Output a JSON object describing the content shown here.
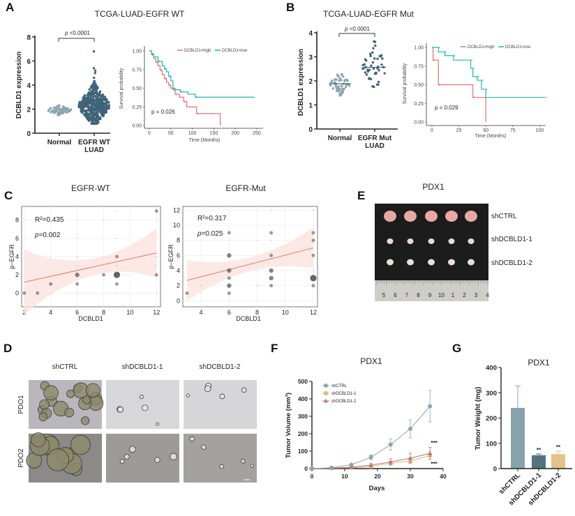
{
  "panel_labels": [
    "A",
    "B",
    "C",
    "D",
    "E",
    "F",
    "G"
  ],
  "colors": {
    "km_high": "#e8716e",
    "km_low": "#21b5b0",
    "normal_dots": "#8fa6ae",
    "tumor_dots": "#3f6478",
    "reg_line": "#e07a62",
    "ci_band": "#fbe3df",
    "bubble": "#555f5a",
    "shCTRL": "#8aa5ad",
    "shDCBLD1_1": "#e0b87c",
    "shDCBLD1_2": "#b87272",
    "bar_shCTRL": "#87a4ab",
    "bar_sh1": "#55727f",
    "bar_sh2": "#e2c287"
  },
  "chart_data": [
    {
      "id": "A-scatter",
      "type": "scatter",
      "panel_title": "TCGA-LUAD-EGFR WT",
      "ylabel": "DCBLD1 expression",
      "ylim": [
        0,
        8
      ],
      "yticks": [
        "0",
        "2",
        "4",
        "6",
        "8"
      ],
      "categories": [
        [
          "Normal"
        ],
        [
          "EGFR WT",
          "LUAD"
        ]
      ],
      "significance": {
        "p_symbol": "p",
        "p_text": " <0.0001"
      },
      "groups": [
        {
          "name": "Normal",
          "center": 1.9,
          "range": [
            1.5,
            2.3
          ]
        },
        {
          "name": "EGFR WT LUAD",
          "center": 2.3,
          "range": [
            0.8,
            4.3
          ],
          "outliers": [
            4.6,
            5.0,
            5.2,
            5.4,
            6.8
          ]
        }
      ]
    },
    {
      "id": "A-km",
      "type": "line",
      "xlabel": "Time (Months)",
      "ylabel": "Survival probability",
      "xlim": [
        0,
        250
      ],
      "ylim": [
        0,
        1
      ],
      "xticks": [
        "0",
        "50",
        "100",
        "150",
        "200",
        "250"
      ],
      "yticks": [
        "0.00",
        "0.25",
        "0.50",
        "0.75",
        "1.00"
      ],
      "p_text": "p = 0.026",
      "series": [
        {
          "name": "DCBLD1=high",
          "points": [
            [
              0,
              1
            ],
            [
              5,
              0.95
            ],
            [
              10,
              0.9
            ],
            [
              15,
              0.85
            ],
            [
              20,
              0.8
            ],
            [
              25,
              0.74
            ],
            [
              30,
              0.68
            ],
            [
              35,
              0.63
            ],
            [
              40,
              0.58
            ],
            [
              45,
              0.54
            ],
            [
              50,
              0.5
            ],
            [
              60,
              0.42
            ],
            [
              70,
              0.38
            ],
            [
              80,
              0.32
            ],
            [
              87,
              0.25
            ],
            [
              110,
              0.16
            ],
            [
              165,
              0.16
            ],
            [
              165,
              0
            ]
          ]
        },
        {
          "name": "DCBLD1=low",
          "points": [
            [
              0,
              1
            ],
            [
              5,
              0.96
            ],
            [
              10,
              0.92
            ],
            [
              20,
              0.86
            ],
            [
              30,
              0.8
            ],
            [
              35,
              0.76
            ],
            [
              40,
              0.72
            ],
            [
              45,
              0.66
            ],
            [
              50,
              0.6
            ],
            [
              55,
              0.48
            ],
            [
              70,
              0.48
            ],
            [
              72,
              0.45
            ],
            [
              90,
              0.42
            ],
            [
              107,
              0.38
            ],
            [
              245,
              0.38
            ]
          ]
        }
      ]
    },
    {
      "id": "B-scatter",
      "type": "scatter",
      "panel_title": "TCGA-LUAD-EGFR Mut",
      "ylabel": "DCBLD1 expression",
      "ylim": [
        0,
        4
      ],
      "yticks": [
        "0",
        "1",
        "2",
        "3",
        "4"
      ],
      "categories": [
        [
          "Normal"
        ],
        [
          "EGFR Mut",
          "LUAD"
        ]
      ],
      "significance": {
        "p_symbol": "p",
        "p_text": " <0.0001"
      },
      "groups": [
        {
          "name": "Normal",
          "center": 1.88,
          "range": [
            1.4,
            2.35
          ]
        },
        {
          "name": "EGFR Mut LUAD",
          "center": 2.56,
          "range": [
            1.75,
            3.65
          ]
        }
      ]
    },
    {
      "id": "B-km",
      "type": "line",
      "xlabel": "Time (Months)",
      "ylabel": "Survival probability",
      "xlim": [
        0,
        105
      ],
      "ylim": [
        0,
        1
      ],
      "xticks": [
        "0",
        "25",
        "50",
        "75",
        "100"
      ],
      "yticks": [
        "0.00",
        "0.25",
        "0.50",
        "0.75",
        "1.00"
      ],
      "p_text": "p = 0.029",
      "series": [
        {
          "name": "DCBLD1=high",
          "points": [
            [
              0,
              1
            ],
            [
              1,
              0.83
            ],
            [
              6,
              0.83
            ],
            [
              6,
              0.5
            ],
            [
              38,
              0.5
            ],
            [
              38,
              0.33
            ],
            [
              50,
              0.33
            ],
            [
              50,
              0
            ]
          ]
        },
        {
          "name": "DCBLD1=low",
          "points": [
            [
              0,
              1
            ],
            [
              6,
              1
            ],
            [
              6,
              0.94
            ],
            [
              12,
              0.94
            ],
            [
              12,
              0.89
            ],
            [
              20,
              0.89
            ],
            [
              20,
              0.83
            ],
            [
              36,
              0.83
            ],
            [
              36,
              0.72
            ],
            [
              38,
              0.72
            ],
            [
              38,
              0.61
            ],
            [
              42,
              0.61
            ],
            [
              42,
              0.56
            ],
            [
              46,
              0.56
            ],
            [
              46,
              0.44
            ],
            [
              50,
              0.44
            ],
            [
              50,
              0.33
            ],
            [
              105,
              0.33
            ]
          ]
        }
      ]
    },
    {
      "id": "C-wt",
      "type": "scatter",
      "title": "EGFR-WT",
      "xlabel": "DCBLD1",
      "ylabel": "p−EGFR",
      "xlim": [
        1.8,
        12.3
      ],
      "ylim": [
        -1.5,
        9.5
      ],
      "xticks": [
        "2",
        "4",
        "6",
        "8",
        "10",
        "12"
      ],
      "yticks": [
        "0",
        "2",
        "4",
        "6",
        "8"
      ],
      "r2_text": "R²=0.435",
      "p_symbol": "p",
      "p_value": "=0.002",
      "fit": [
        [
          2,
          1.2
        ],
        [
          12,
          4.4
        ]
      ],
      "points": [
        [
          2,
          0,
          2
        ],
        [
          3,
          0,
          2
        ],
        [
          4,
          1,
          2
        ],
        [
          4,
          4,
          1
        ],
        [
          4,
          0,
          1
        ],
        [
          6,
          6,
          1
        ],
        [
          6,
          4,
          1
        ],
        [
          6,
          3,
          1
        ],
        [
          6,
          2,
          3
        ],
        [
          6,
          1,
          2
        ],
        [
          6,
          0,
          1
        ],
        [
          8,
          8,
          1
        ],
        [
          8,
          4,
          1
        ],
        [
          8,
          2,
          2
        ],
        [
          9,
          9,
          1
        ],
        [
          9,
          6,
          1
        ],
        [
          9,
          4,
          2
        ],
        [
          9,
          3,
          1
        ],
        [
          9,
          2,
          5
        ],
        [
          9,
          1,
          2
        ],
        [
          9,
          0,
          1
        ],
        [
          12,
          9,
          2
        ],
        [
          12,
          4,
          1
        ],
        [
          12,
          3,
          1
        ],
        [
          12,
          2,
          2
        ],
        [
          12,
          0,
          1
        ]
      ]
    },
    {
      "id": "C-mut",
      "type": "scatter",
      "title": "EGFR-Mut",
      "xlabel": "DCBLD1",
      "ylabel": "p−EGFR",
      "xlim": [
        2.7,
        12.3
      ],
      "ylim": [
        -0.8,
        12.5
      ],
      "xticks": [
        "4",
        "6",
        "8",
        "10",
        "12"
      ],
      "yticks": [
        "0",
        "2",
        "4",
        "6",
        "8",
        "10",
        "12"
      ],
      "r2_text": "R²=0.317",
      "p_symbol": "p",
      "p_value": "=0.025",
      "fit": [
        [
          3,
          2.7
        ],
        [
          12,
          7.0
        ]
      ],
      "points": [
        [
          3,
          1,
          2
        ],
        [
          4,
          2,
          1
        ],
        [
          4,
          1,
          1
        ],
        [
          6,
          9,
          2
        ],
        [
          6,
          8,
          1
        ],
        [
          6,
          6,
          3
        ],
        [
          6,
          4,
          3
        ],
        [
          6,
          3,
          2
        ],
        [
          6,
          2,
          3
        ],
        [
          6,
          1,
          2
        ],
        [
          8,
          8,
          1
        ],
        [
          8,
          2,
          1
        ],
        [
          9,
          12,
          1
        ],
        [
          9,
          9,
          2
        ],
        [
          9,
          8,
          1
        ],
        [
          9,
          6,
          2
        ],
        [
          9,
          4,
          3
        ],
        [
          9,
          3,
          3
        ],
        [
          9,
          2,
          2
        ],
        [
          12,
          12,
          1
        ],
        [
          12,
          9,
          2
        ],
        [
          12,
          8,
          2
        ],
        [
          12,
          6,
          2
        ],
        [
          12,
          4,
          1
        ],
        [
          12,
          3,
          5
        ],
        [
          12,
          2,
          2
        ]
      ]
    },
    {
      "id": "F",
      "type": "line",
      "title": "PDX1",
      "xlabel": "Days",
      "ylabel": "Tumor Volume (mm³)",
      "xlim": [
        0,
        40
      ],
      "ylim": [
        0,
        500
      ],
      "xticks": [
        "0",
        "10",
        "20",
        "30",
        "40"
      ],
      "yticks": [
        "0",
        "100",
        "200",
        "300",
        "400",
        "500"
      ],
      "x": [
        0,
        6,
        12,
        18,
        24,
        30,
        36
      ],
      "series": [
        {
          "name": "shCTRL",
          "values": [
            0,
            5,
            22,
            65,
            138,
            228,
            358
          ],
          "error": [
            0,
            3,
            6,
            13,
            32,
            52,
            90
          ],
          "marker": "circle"
        },
        {
          "name": "shDCBLD1-1",
          "values": [
            0,
            2,
            5,
            12,
            30,
            45,
            75
          ],
          "error": [
            0,
            1,
            3,
            6,
            10,
            15,
            22
          ],
          "marker": "square"
        },
        {
          "name": "shDCBLD1-2",
          "values": [
            0,
            3,
            8,
            20,
            38,
            60,
            87
          ],
          "error": [
            0,
            2,
            4,
            10,
            18,
            28,
            35
          ],
          "marker": "triangle"
        }
      ],
      "annotations": [
        "***",
        "***"
      ]
    },
    {
      "id": "G",
      "type": "bar",
      "title": "PDX1",
      "ylabel": "Tumor Weight (mg)",
      "ylim": [
        0,
        400
      ],
      "yticks": [
        "0",
        "100",
        "200",
        "300",
        "400"
      ],
      "categories": [
        "shCTRL",
        "shDCBLD1-1",
        "shDCBLD1-2"
      ],
      "values": [
        240,
        53,
        57
      ],
      "error": [
        87,
        5,
        12
      ],
      "annotations": [
        "",
        "**",
        "**"
      ]
    }
  ],
  "panel_d": {
    "columns": [
      "shCTRL",
      "shDCBLD1-1",
      "shDCBLD1-2"
    ],
    "rows": [
      "PDO1",
      "PDO2"
    ]
  },
  "panel_e": {
    "title": "PDX1",
    "rows": [
      "shCTRL",
      "shDCBLD1-1",
      "shDCBLD1-2"
    ],
    "ruler_numbers": [
      "5",
      "6",
      "7",
      "8",
      "9",
      "10",
      "1",
      "2",
      "3",
      "4"
    ]
  }
}
